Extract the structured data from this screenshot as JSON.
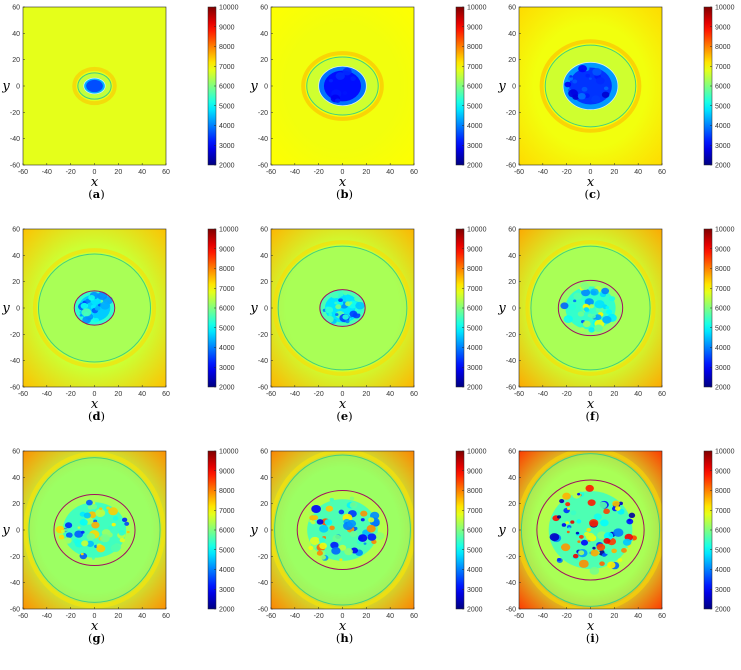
{
  "chart_data": {
    "type": "heatmap",
    "layout": "3x3 grid of panels",
    "panel_labels": [
      "(a)",
      "(b)",
      "(c)",
      "(d)",
      "(e)",
      "(f)",
      "(g)",
      "(h)",
      "(i)"
    ],
    "xlabel": "x",
    "ylabel": "y",
    "xlim": [
      -60,
      60
    ],
    "ylim": [
      -60,
      60
    ],
    "x_ticks": [
      -60,
      -40,
      -20,
      0,
      20,
      40,
      60
    ],
    "y_ticks": [
      60,
      40,
      20,
      0,
      -20,
      -40,
      -60
    ],
    "colorbar": {
      "range": [
        2000,
        10000
      ],
      "ticks": [
        10000,
        9000,
        8000,
        7000,
        6000,
        5000,
        4000,
        3000,
        2000
      ],
      "colormap": "jet"
    },
    "panels": [
      {
        "label": "(a)",
        "background": 6800,
        "edge": 6800,
        "outer_contour_radius": [
          14,
          10
        ],
        "outer_contour_color": "#40d080",
        "inner_contour_color": "",
        "core_radius": [
          9,
          6
        ],
        "core_value": 3600,
        "core_noise": 0
      },
      {
        "label": "(b)",
        "background": 6900,
        "edge": 7000,
        "outer_contour_radius": [
          30,
          22
        ],
        "outer_contour_color": "#40d080",
        "inner_contour_color": "",
        "core_radius": [
          20,
          15
        ],
        "core_value": 3100,
        "core_noise": 300
      },
      {
        "label": "(c)",
        "background": 6900,
        "edge": 7300,
        "outer_contour_radius": [
          38,
          31
        ],
        "outer_contour_color": "#40d080",
        "inner_contour_color": "",
        "core_radius": [
          23,
          18
        ],
        "core_value": 3400,
        "core_noise": 800
      },
      {
        "label": "(d)",
        "background": 6600,
        "edge": 7500,
        "outer_contour_radius": [
          47,
          41
        ],
        "outer_contour_color": "#40d080",
        "inner_contour_color": "#a01060",
        "core_radius": [
          17,
          13
        ],
        "core_value": 4600,
        "core_noise": 1200
      },
      {
        "label": "(e)",
        "background": 6600,
        "edge": 7600,
        "outer_contour_radius": [
          54,
          47
        ],
        "outer_contour_color": "#40d080",
        "inner_contour_color": "#a01060",
        "core_radius": [
          19,
          14
        ],
        "core_value": 4800,
        "core_noise": 1400
      },
      {
        "label": "(f)",
        "background": 6600,
        "edge": 7700,
        "outer_contour_radius": [
          50,
          47
        ],
        "outer_contour_color": "#40d080",
        "inner_contour_color": "#a01060",
        "core_radius": [
          27,
          21
        ],
        "core_value": 5400,
        "core_noise": 1800
      },
      {
        "label": "(g)",
        "background": 6500,
        "edge": 7900,
        "outer_contour_radius": [
          55,
          55
        ],
        "outer_contour_color": "#40d080",
        "inner_contour_color": "#a01060",
        "core_radius": [
          34,
          27
        ],
        "core_value": 5500,
        "core_noise": 2300
      },
      {
        "label": "(h)",
        "background": 6500,
        "edge": 8000,
        "outer_contour_radius": [
          57,
          57
        ],
        "outer_contour_color": "#40d080",
        "inner_contour_color": "#a01060",
        "core_radius": [
          38,
          30
        ],
        "core_value": 5600,
        "core_noise": 2800
      },
      {
        "label": "(i)",
        "background": 6600,
        "edge": 8600,
        "outer_contour_radius": [
          58,
          58
        ],
        "outer_contour_color": "#40d080",
        "inner_contour_color": "#a01060",
        "core_radius": [
          45,
          38
        ],
        "core_value": 5600,
        "core_noise": 3600
      }
    ]
  }
}
